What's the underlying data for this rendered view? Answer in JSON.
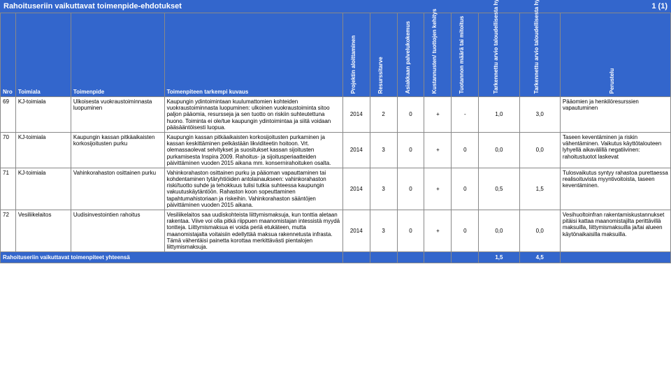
{
  "title": "Rahoituseriin vaikuttavat toimenpide-ehdotukset",
  "page": "1 (1)",
  "columns": {
    "nro": "Nro",
    "toimiala": "Toimiala",
    "toimenpide": "Toimenpide",
    "kuvaus": "Toimenpiteen tarkempi kuvaus",
    "c1": "Projektin aloittaminen",
    "c2": "Resurssitarve",
    "c3": "Asiakkaan palvelukokemus",
    "c4": "Kustannusten/ tuottojen kehitys",
    "c5": "Tuotannon määrä tai mitoitus",
    "c6": "Tarkennettu arvio taloudellisesta hyödystä TA 2015",
    "c7": "Tarkennettu arvio taloudellisesta hyödystä TS 2016-2018",
    "perustelu": "Perustelu"
  },
  "rows": [
    {
      "nro": "69",
      "toimiala": "KJ-toimiala",
      "toimenpide": "Ulkoisesta vuokraustoiminnasta luopuminen",
      "kuvaus": "Kaupungin ydintoimintaan kuulumattomien kohteiden vuokraustoiminnasta luopuminen: ulkoinen vuokraustoiminta sitoo paljon pääomia, resursseja ja sen tuotto on riskiin suhteutettuna huono. Toiminta ei ole/tue kaupungin ydintoimintaa ja siitä voidaan pääsääntöisesti luopua.",
      "c1": "2014",
      "c2": "2",
      "c3": "0",
      "c4": "+",
      "c5": "-",
      "c6": "1,0",
      "c7": "3,0",
      "perustelu": "Pääomien ja henkilöresurssien vapautuminen"
    },
    {
      "nro": "70",
      "toimiala": "KJ-toimiala",
      "toimenpide": "Kaupungin kassan pitkäaikaisten korkosijoitusten purku",
      "kuvaus": "Kaupungin kassan pitkäaikaisten korkosijoitusten purkaminen ja kassan keskittäminen pelkästään likviditeetin hoitoon. Vrt. olemassaolevat selvitykset ja suositukset kassan sijoitusten purkamisesta Inspira 2009. Rahoitus- ja sijoitusperiaatteiden päivittäminen vuoden 2015 aikana mm. konsernirahoituken osalta.",
      "c1": "2014",
      "c2": "3",
      "c3": "0",
      "c4": "+",
      "c5": "0",
      "c6": "0,0",
      "c7": "0,0",
      "perustelu": "Taseen keventäminen ja riskin vähentäminen. Vaikutus käyttötalouteen lyhyellä aikavälillä negatiivinen: rahoitustuotot laskevat"
    },
    {
      "nro": "71",
      "toimiala": "KJ-toimiala",
      "toimenpide": "Vahinkorahaston osittainen purku",
      "kuvaus": "Vahinkorahaston osittainen purku ja pääoman vapauttaminen tai kohdentaminen tytäryhtiöiden antolainaukseen: vahinkorahaston riski/tuotto suhde ja tehokkuus tulisi tutkia suhteessa kaupungin vakuutuskäytäntöön. Rahaston koon sopeuttaminen tapahtumahistoriaan ja riskeihin. Vahinkorahaston sääntöjen päivittäminen vuoden 2015 aikana.",
      "c1": "2014",
      "c2": "3",
      "c3": "0",
      "c4": "+",
      "c5": "0",
      "c6": "0,5",
      "c7": "1,5",
      "perustelu": "Tulosvaikutus syntyy rahastoa purettaessa realisoituvista myyntivoitoista, taseen keventäminen."
    },
    {
      "nro": "72",
      "toimiala": "Vesiliikelaitos",
      "toimenpide": "Uudisinvestointien rahoitus",
      "kuvaus": "Vesiliikelaitos saa uudiskohteista liittymismaksuja, kun tonttia aletaan rakentaa. Viive voi olla pitkä riippuen maanomistajan intessistä myydä tontteja. Liittymismaksua ei voida periä etukäteen, mutta maanomistajalta voitaisiin edellyttää maksua rakennetusta infrasta. Tämä vähentäisi painetta korottaa merkittävästi pientalojen liittymismaksuja.",
      "c1": "2014",
      "c2": "3",
      "c3": "0",
      "c4": "+",
      "c5": "0",
      "c6": "0,0",
      "c7": "0,0",
      "perustelu": "Vesihuoltoinfran rakentamiskustannukset pitäisi kattaa maanomistajilta perittävillä maksuilla, liittymismaksuilla ja/tai alueen käytönaikaisilla maksuilla."
    }
  ],
  "footer": {
    "label": "Rahoituseriin vaikuttavat toimenpiteet yhteensä",
    "sum6": "1,5",
    "sum7": "4,5"
  }
}
